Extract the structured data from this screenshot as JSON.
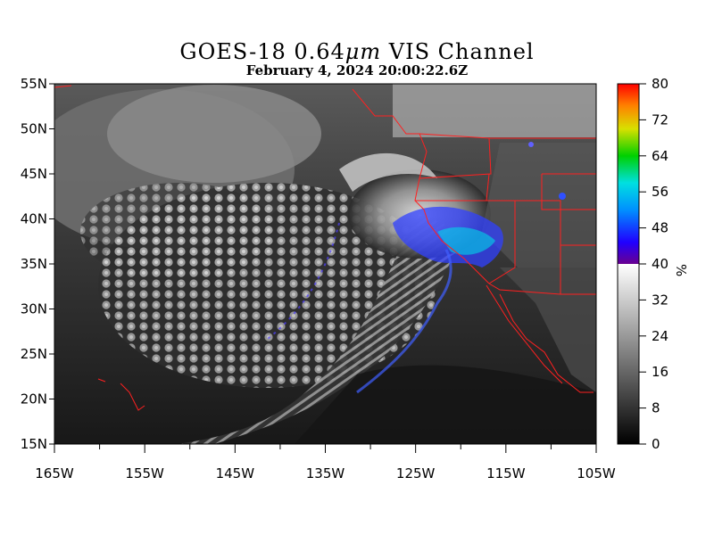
{
  "title": {
    "main": "GOES-18  0.64",
    "micro": "μm",
    "channel": " VIS Channel",
    "timestamp": "February  4,  2024 20:00:22.6Z"
  },
  "axes": {
    "lat_ticks": [
      "55N",
      "50N",
      "45N",
      "40N",
      "35N",
      "30N",
      "25N",
      "20N",
      "15N"
    ],
    "lat_values": [
      55,
      50,
      45,
      40,
      35,
      30,
      25,
      20,
      15
    ],
    "lon_ticks": [
      "165W",
      "155W",
      "145W",
      "135W",
      "125W",
      "115W",
      "105W"
    ],
    "lon_values": [
      -165,
      -155,
      -145,
      -135,
      -125,
      -115,
      -105
    ],
    "lat_range": [
      15,
      55
    ],
    "lon_range": [
      -165,
      -105
    ]
  },
  "colorbar": {
    "ticks": [
      "80",
      "72",
      "64",
      "56",
      "48",
      "40",
      "32",
      "24",
      "16",
      "8",
      "0"
    ],
    "values": [
      80,
      72,
      64,
      56,
      48,
      40,
      32,
      24,
      16,
      8,
      0
    ],
    "range": [
      0,
      80
    ],
    "unit": "%"
  },
  "colors": {
    "boundary": "#ff2020",
    "cloud_color": "#3050ff"
  }
}
